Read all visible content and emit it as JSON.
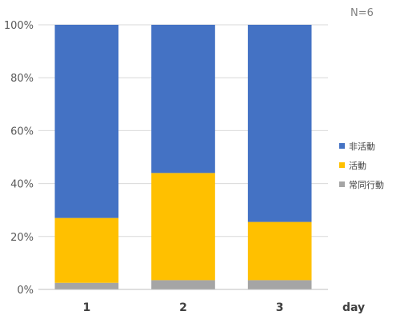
{
  "chart_data": {
    "type": "bar",
    "stacked": "percent",
    "annotation": "N=6",
    "categories": [
      "1",
      "2",
      "3"
    ],
    "xlabel": "day",
    "ylabel": "",
    "ylim": [
      0,
      100
    ],
    "yticks": [
      "0%",
      "20%",
      "40%",
      "60%",
      "80%",
      "100%"
    ],
    "grid": true,
    "legend_position": "right",
    "series": [
      {
        "name": "常同行動",
        "color": "#a5a5a5",
        "values": [
          2.5,
          3.5,
          3.5
        ]
      },
      {
        "name": "活動",
        "color": "#ffc000",
        "values": [
          24.5,
          40.5,
          22
        ]
      },
      {
        "name": "非活動",
        "color": "#4472c4",
        "values": [
          73,
          56,
          74.5
        ]
      }
    ],
    "legend_order": [
      2,
      1,
      0
    ]
  }
}
